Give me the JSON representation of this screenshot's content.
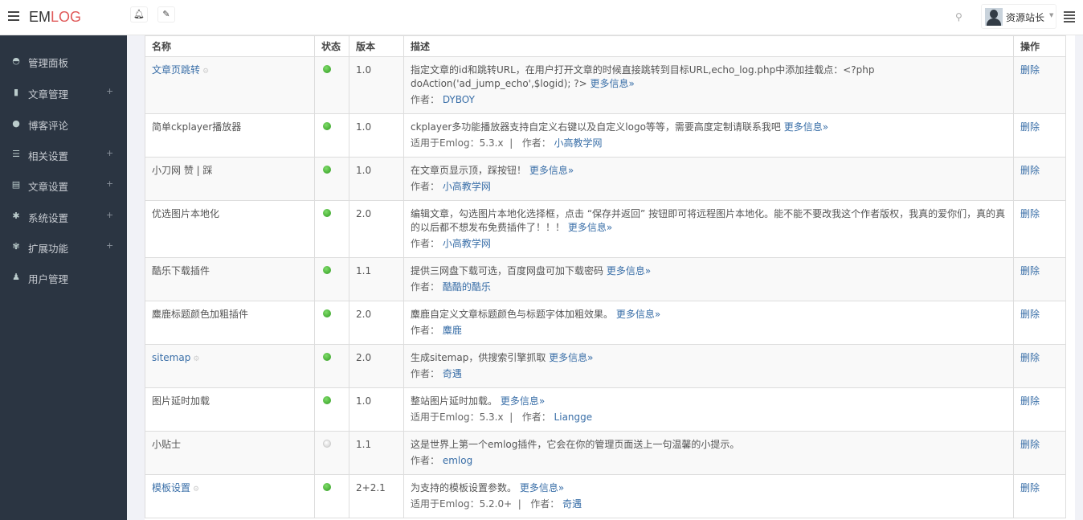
{
  "header": {
    "logo_a": "EM",
    "logo_b": "LOG",
    "user": "资源站长"
  },
  "sidebar": {
    "items": [
      {
        "label": "管理面板",
        "icon": "dashboard-icon",
        "glyph": "◓",
        "plus": false
      },
      {
        "label": "文章管理",
        "icon": "bookmark-icon",
        "glyph": "▮",
        "plus": true
      },
      {
        "label": "博客评论",
        "icon": "comments-icon",
        "glyph": "●",
        "plus": false
      },
      {
        "label": "相关设置",
        "icon": "sliders-icon",
        "glyph": "☰",
        "plus": true
      },
      {
        "label": "文章设置",
        "icon": "list-icon",
        "glyph": "▤",
        "plus": true
      },
      {
        "label": "系统设置",
        "icon": "gear-icon",
        "glyph": "✱",
        "plus": true
      },
      {
        "label": "扩展功能",
        "icon": "puzzle-icon",
        "glyph": "✾",
        "plus": true
      },
      {
        "label": "用户管理",
        "icon": "users-icon",
        "glyph": "♟",
        "plus": false
      }
    ],
    "plus_label": "+"
  },
  "table": {
    "headers": [
      "名称",
      "状态",
      "版本",
      "描述",
      "操作"
    ],
    "more_label": "更多信息»",
    "author_label": "作者：",
    "compat_label": "适用于Emlog：",
    "delete_label": "删除",
    "rows": [
      {
        "name": "文章页跳转",
        "link": true,
        "active": true,
        "version": "1.0",
        "desc": "指定文章的id和跳转URL，在用户打开文章的时候直接跳转到目标URL,echo_log.php中添加挂载点：<?php doAction('ad_jump_echo',$logid); ?>",
        "compat": "",
        "author": "DYBOY"
      },
      {
        "name": "简单ckplayer播放器",
        "link": false,
        "active": true,
        "version": "1.0",
        "desc": "ckplayer多功能播放器支持自定义右键以及自定义logo等等，需要高度定制请联系我吧",
        "compat": "5.3.x",
        "author": "小高教学网"
      },
      {
        "name": "小刀网 赞 | 踩",
        "link": false,
        "active": true,
        "version": "1.0",
        "desc": "在文章页显示顶，踩按钮！",
        "compat": "",
        "author": "小高教学网"
      },
      {
        "name": "优选图片本地化",
        "link": false,
        "active": true,
        "version": "2.0",
        "desc": "编辑文章，勾选图片本地化选择框，点击 “保存并返回” 按钮即可将远程图片本地化。能不能不要改我这个作者版权，我真的爱你们，真的真的以后都不想发布免费插件了！！！",
        "compat": "",
        "author": "小高教学网"
      },
      {
        "name": "酷乐下载插件",
        "link": false,
        "active": true,
        "version": "1.1",
        "desc": "提供三网盘下载可选，百度网盘可加下载密码",
        "compat": "",
        "author": "酷酷的酷乐"
      },
      {
        "name": "麋鹿标题颜色加粗插件",
        "link": false,
        "active": true,
        "version": "2.0",
        "desc": "麋鹿自定义文章标题颜色与标题字体加粗效果。",
        "compat": "",
        "author": "麋鹿"
      },
      {
        "name": "sitemap",
        "link": true,
        "active": true,
        "version": "2.0",
        "desc": "生成sitemap，供搜索引擎抓取",
        "compat": "",
        "author": "奇遇"
      },
      {
        "name": "图片延时加载",
        "link": false,
        "active": true,
        "version": "1.0",
        "desc": "整站图片延时加载。",
        "compat": "5.3.x",
        "author": "Liangge"
      },
      {
        "name": "小贴士",
        "link": false,
        "active": false,
        "version": "1.1",
        "desc": "这是世界上第一个emlog插件，它会在你的管理页面送上一句温馨的小提示。",
        "compat": "",
        "author": "emlog",
        "nomore": true
      },
      {
        "name": "模板设置",
        "link": true,
        "active": true,
        "version": "2+2.1",
        "desc": "为支持的模板设置参数。",
        "compat": "5.2.0+",
        "author": "奇遇"
      }
    ]
  }
}
